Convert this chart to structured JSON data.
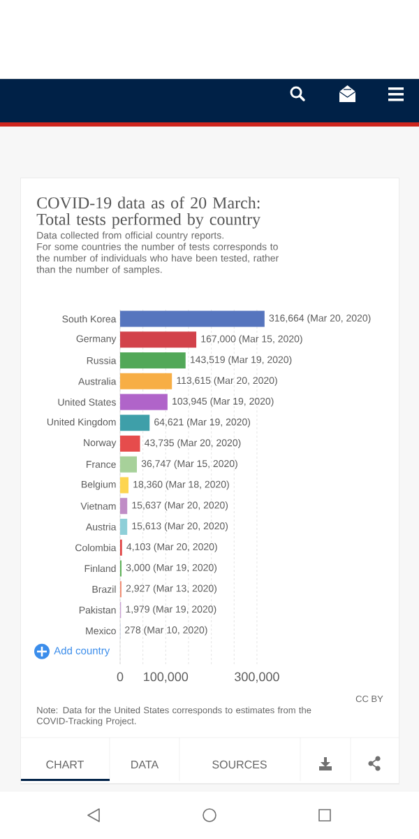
{
  "chart_data": {
    "type": "bar",
    "orientation": "horizontal",
    "title": "COVID-19 data as of 20 March: Total tests performed by country",
    "subtitle": "Data collected from official country reports.\nFor some countries the number of tests corresponds to the number of individuals who have been tested, rather than the number of samples.",
    "categories": [
      "South Korea",
      "Germany",
      "Russia",
      "Australia",
      "United States",
      "United Kingdom",
      "Norway",
      "France",
      "Belgium",
      "Vietnam",
      "Austria",
      "Colombia",
      "Finland",
      "Brazil",
      "Pakistan",
      "Mexico"
    ],
    "values": [
      316664,
      167000,
      143519,
      113615,
      103945,
      64621,
      43735,
      36747,
      18360,
      15637,
      15613,
      4103,
      3000,
      2927,
      1979,
      278
    ],
    "colors": [
      "#5675be",
      "#d2424a",
      "#52a858",
      "#f7ae45",
      "#b064c9",
      "#3e9fa9",
      "#e64c4c",
      "#a7d19a",
      "#fdd550",
      "#c08dc6",
      "#8ecfd8",
      "#e04040",
      "#5bb055",
      "#f08a70",
      "#c9a0d3",
      "#6d87c9"
    ],
    "value_labels": [
      "316,664 (Mar 20, 2020)",
      "167,000 (Mar 15, 2020)",
      "143,519 (Mar 19, 2020)",
      "113,615 (Mar 20, 2020)",
      "103,945 (Mar 19, 2020)",
      "64,621 (Mar 19, 2020)",
      "43,735 (Mar 20, 2020)",
      "36,747 (Mar 15, 2020)",
      "18,360 (Mar 18, 2020)",
      "15,637 (Mar 20, 2020)",
      "15,613 (Mar 20, 2020)",
      "4,103 (Mar 20, 2020)",
      "3,000 (Mar 19, 2020)",
      "2,927 (Mar 13, 2020)",
      "1,979 (Mar 19, 2020)",
      "278 (Mar 10, 2020)"
    ],
    "xlim": [
      0,
      320000
    ],
    "xticks": [
      0,
      {
        "value": 50000,
        "label": null
      },
      {
        "value": 100000,
        "label": "100,000"
      },
      {
        "value": 150000,
        "label": null
      },
      {
        "value": 200000,
        "label": null
      },
      {
        "value": 250000,
        "label": null
      },
      {
        "value": 300000,
        "label": "300,000"
      }
    ],
    "grid": "x",
    "annotations": [
      "CC BY",
      "Note: Data for the United States corresponds to estimates from the COVID-Tracking Project.",
      "Add country",
      "CHART",
      "DATA",
      "SOURCES"
    ]
  }
}
